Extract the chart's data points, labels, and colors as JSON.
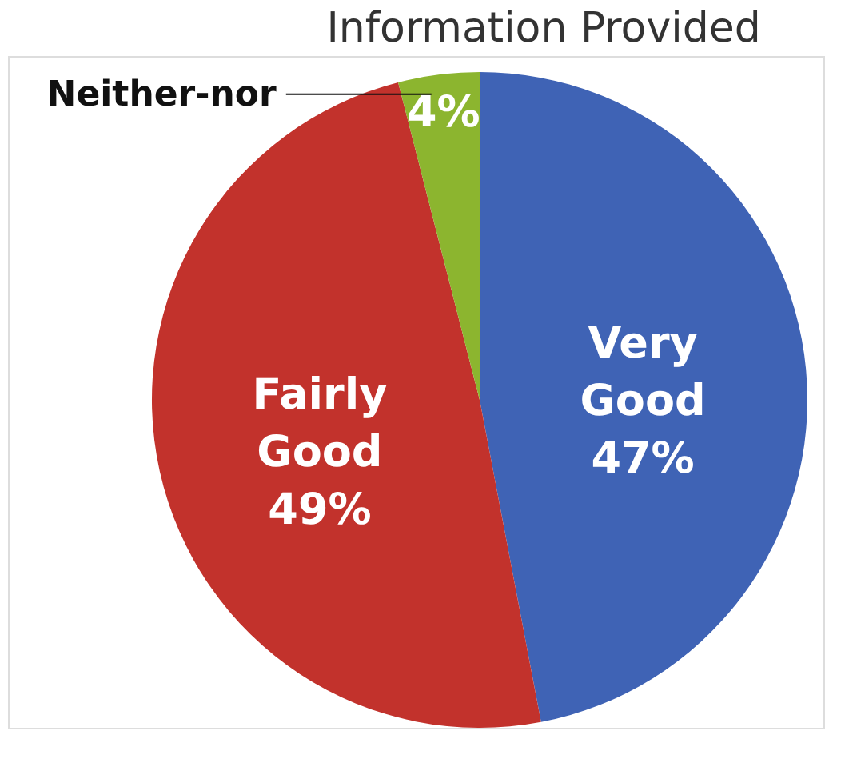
{
  "chart_data": {
    "type": "pie",
    "title": "Information Provided",
    "categories": [
      "Very Good",
      "Fairly Good",
      "Neither-nor"
    ],
    "values": [
      47,
      49,
      4
    ],
    "colors": [
      "#3f63b5",
      "#c2322c",
      "#8cb52f"
    ],
    "value_labels": [
      "47%",
      "49%",
      "4%"
    ],
    "legend": false
  }
}
